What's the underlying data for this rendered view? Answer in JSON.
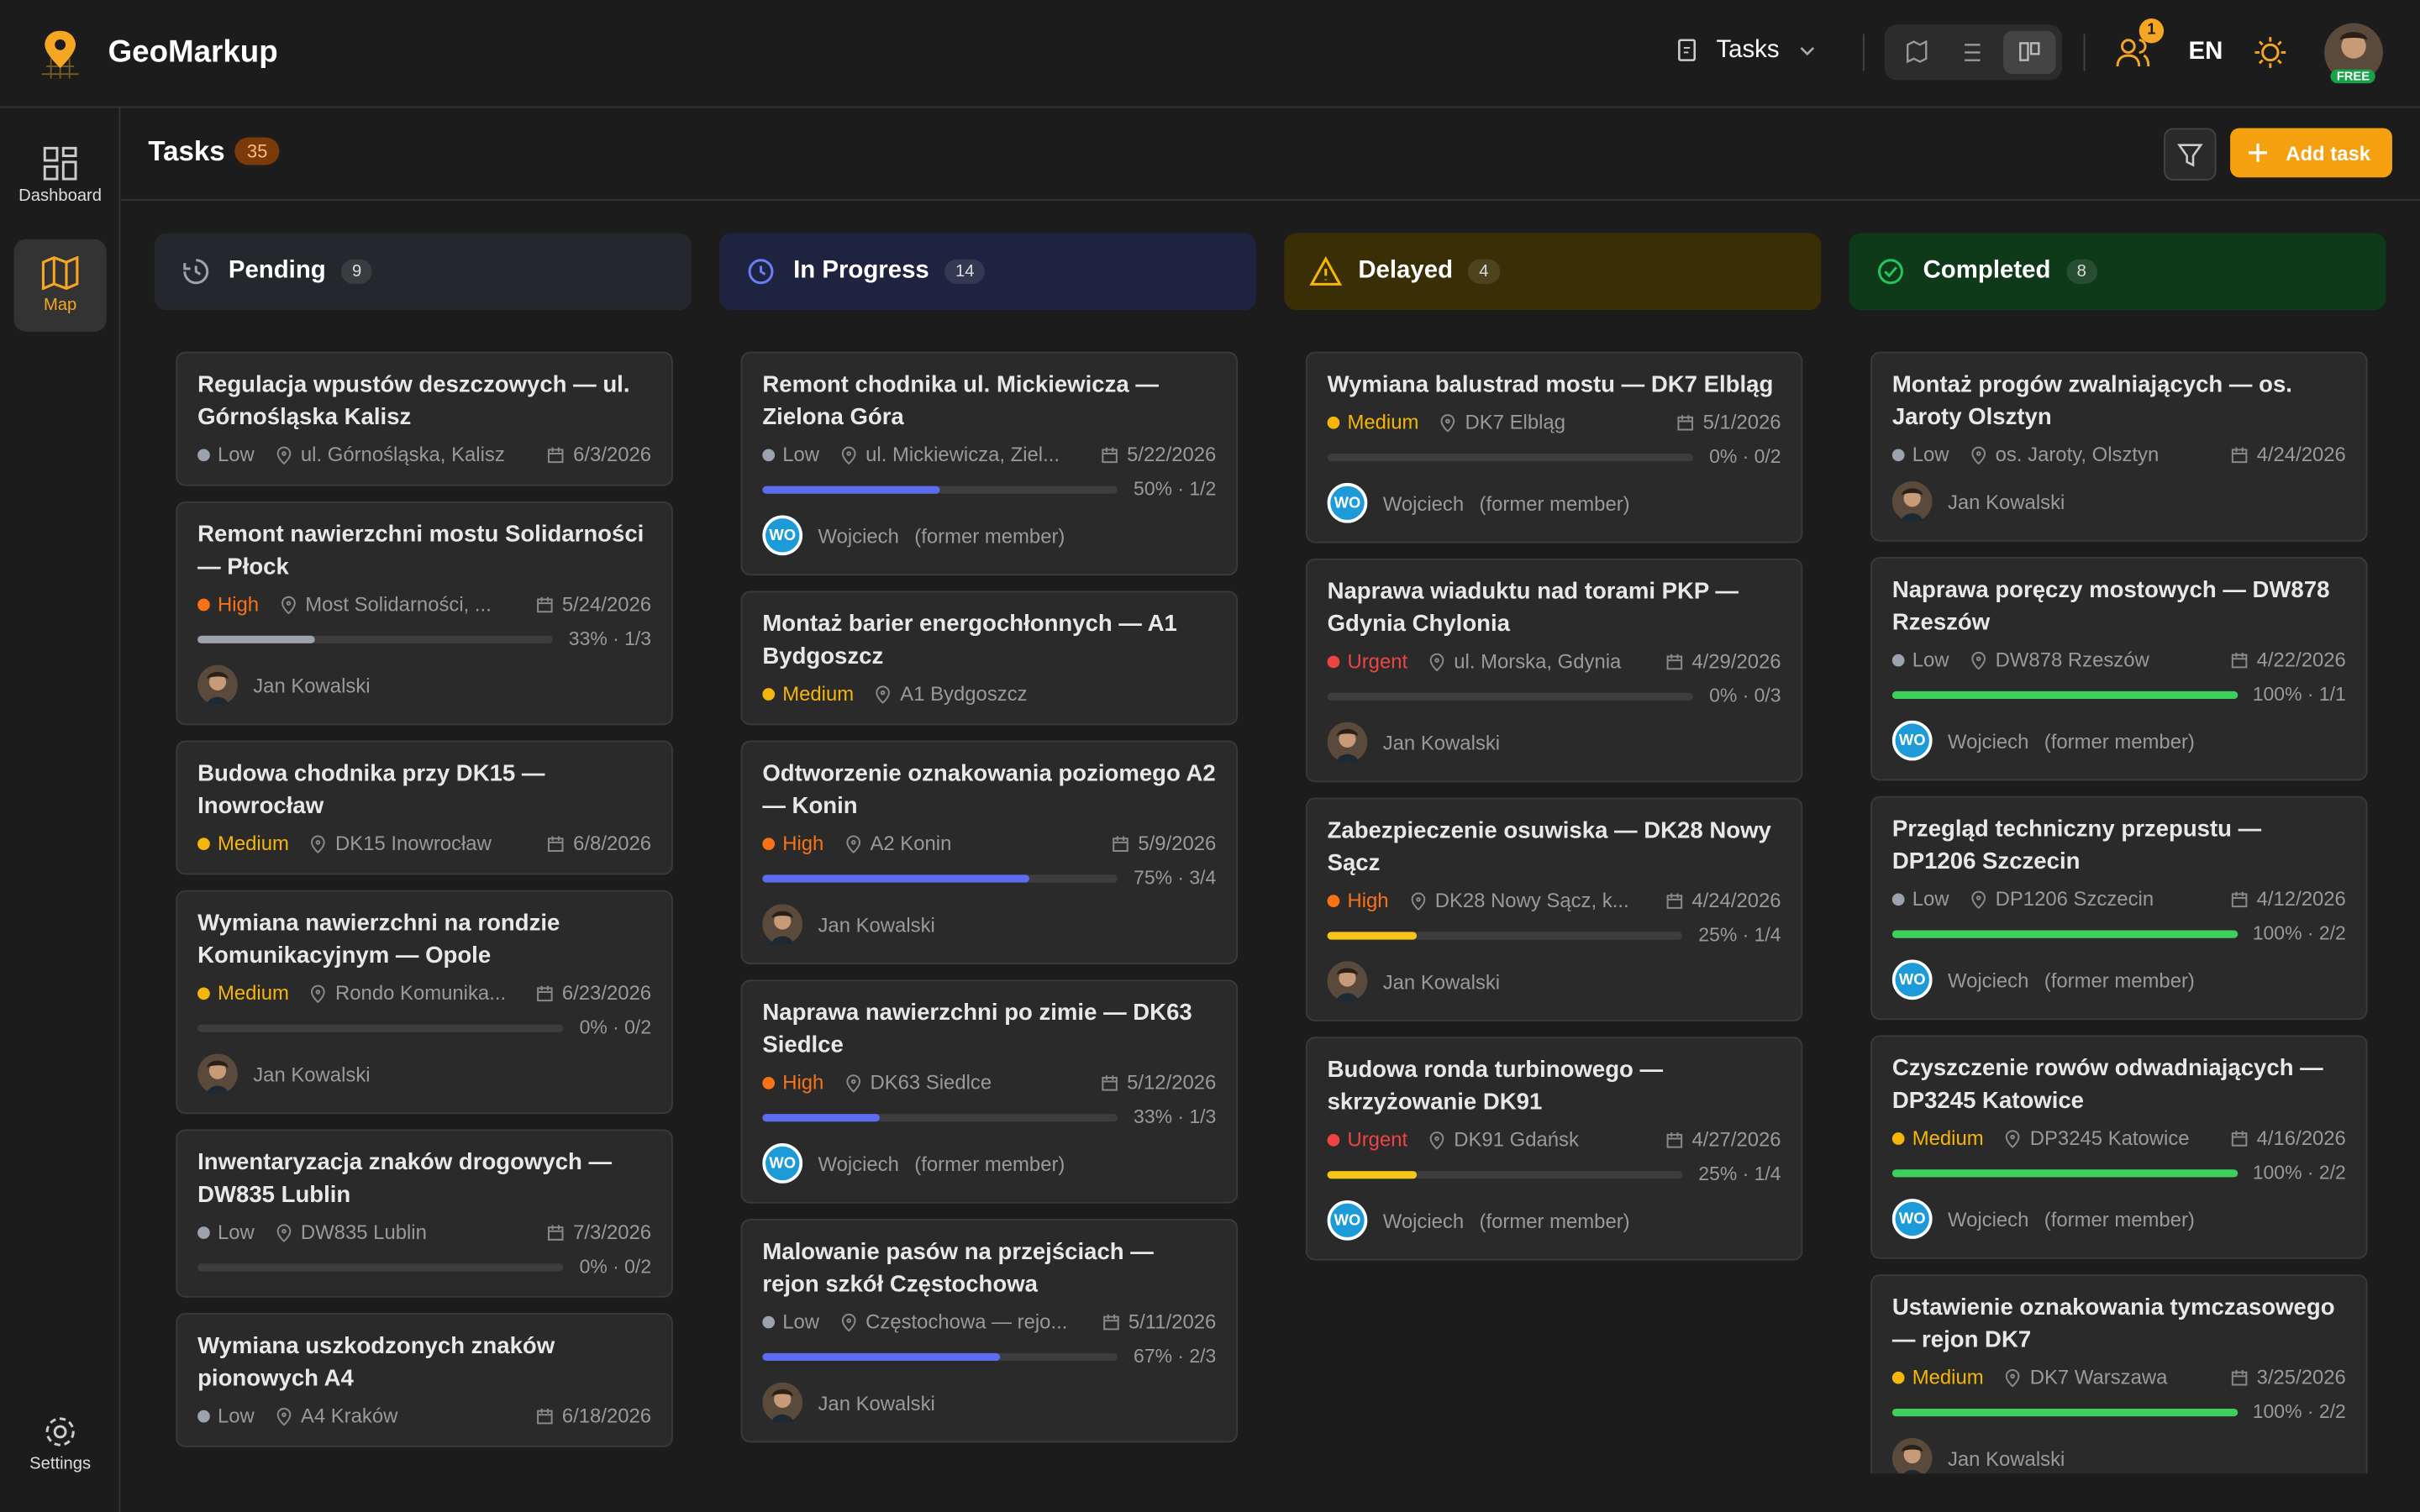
{
  "header": {
    "brand": "GeoMarkup",
    "view": "Tasks",
    "notifications": "1",
    "language": "EN",
    "plan": "FREE"
  },
  "sidebar": {
    "items": [
      "Dashboard",
      "Map"
    ],
    "settings": "Settings"
  },
  "toolbar": {
    "title": "Tasks",
    "count": "35",
    "add": "Add task"
  },
  "columns": [
    {
      "name": "Pending",
      "count": "9",
      "bg": "#24272b",
      "accent": "#9ca3af",
      "bar": "#9ca3af",
      "cards": [
        {
          "title": "Regulacja wpustów deszczowych — ul. Górnośląska Kalisz",
          "priority": {
            "label": "Low",
            "color": "#9ca3af"
          },
          "location": "ul. Górnośląska, Kalisz",
          "date": "6/3/2026"
        },
        {
          "title": "Remont nawierzchni mostu Solidarności — Płock",
          "priority": {
            "label": "High",
            "color": "#f97316"
          },
          "location": "Most Solidarności, ...",
          "date": "5/24/2026",
          "progress": {
            "value": 33,
            "label": "33% · 1/3"
          },
          "assignee": {
            "name": "Jan Kowalski"
          }
        },
        {
          "title": "Budowa chodnika przy DK15 — Inowrocław",
          "priority": {
            "label": "Medium",
            "color": "#f5b50a"
          },
          "location": "DK15 Inowrocław",
          "date": "6/8/2026"
        },
        {
          "title": "Wymiana nawierzchni na rondzie Komunikacyjnym — Opole",
          "priority": {
            "label": "Medium",
            "color": "#f5b50a"
          },
          "location": "Rondo Komunika...",
          "date": "6/23/2026",
          "progress": {
            "value": 0,
            "label": "0% · 0/2"
          },
          "assignee": {
            "name": "Jan Kowalski"
          }
        },
        {
          "title": "Inwentaryzacja znaków drogowych — DW835 Lublin",
          "priority": {
            "label": "Low",
            "color": "#9ca3af"
          },
          "location": "DW835 Lublin",
          "date": "7/3/2026",
          "progress": {
            "value": 0,
            "label": "0% · 0/2"
          }
        },
        {
          "title": "Wymiana uszkodzonych znaków pionowych A4",
          "priority": {
            "label": "Low",
            "color": "#9ca3af"
          },
          "location": "A4 Kraków",
          "date": "6/18/2026"
        }
      ]
    },
    {
      "name": "In Progress",
      "count": "14",
      "bg": "#1e2340",
      "accent": "#6b7cf6",
      "bar": "#5b6cf0",
      "cards": [
        {
          "title": "Remont chodnika ul. Mickiewicza — Zielona Góra",
          "priority": {
            "label": "Low",
            "color": "#9ca3af"
          },
          "location": "ul. Mickiewicza, Ziel...",
          "date": "5/22/2026",
          "progress": {
            "value": 50,
            "label": "50% · 1/2"
          },
          "assignee": {
            "initials": "WO",
            "name": "Wojciech",
            "note": "(former member)"
          }
        },
        {
          "title": "Montaż barier energochłonnych — A1 Bydgoszcz",
          "priority": {
            "label": "Medium",
            "color": "#f5b50a"
          },
          "location": "A1 Bydgoszcz"
        },
        {
          "title": "Odtworzenie oznakowania poziomego A2 — Konin",
          "priority": {
            "label": "High",
            "color": "#f97316"
          },
          "location": "A2 Konin",
          "date": "5/9/2026",
          "progress": {
            "value": 75,
            "label": "75% · 3/4"
          },
          "assignee": {
            "name": "Jan Kowalski"
          }
        },
        {
          "title": "Naprawa nawierzchni po zimie — DK63 Siedlce",
          "priority": {
            "label": "High",
            "color": "#f97316"
          },
          "location": "DK63 Siedlce",
          "date": "5/12/2026",
          "progress": {
            "value": 33,
            "label": "33% · 1/3"
          },
          "assignee": {
            "initials": "WO",
            "name": "Wojciech",
            "note": "(former member)"
          }
        },
        {
          "title": "Malowanie pasów na przejściach — rejon szkół Częstochowa",
          "priority": {
            "label": "Low",
            "color": "#9ca3af"
          },
          "location": "Częstochowa — rejo...",
          "date": "5/11/2026",
          "progress": {
            "value": 67,
            "label": "67% · 2/3"
          },
          "assignee": {
            "name": "Jan Kowalski"
          }
        }
      ]
    },
    {
      "name": "Delayed",
      "count": "4",
      "bg": "#3a2e06",
      "accent": "#f5b50a",
      "bar": "#f5c518",
      "cards": [
        {
          "title": "Wymiana balustrad mostu — DK7 Elbląg",
          "priority": {
            "label": "Medium",
            "color": "#f5b50a"
          },
          "location": "DK7 Elbląg",
          "date": "5/1/2026",
          "progress": {
            "value": 0,
            "label": "0% · 0/2"
          },
          "assignee": {
            "initials": "WO",
            "name": "Wojciech",
            "note": "(former member)"
          }
        },
        {
          "title": "Naprawa wiaduktu nad torami PKP — Gdynia Chylonia",
          "priority": {
            "label": "Urgent",
            "color": "#ef4444"
          },
          "location": "ul. Morska, Gdynia",
          "date": "4/29/2026",
          "progress": {
            "value": 0,
            "label": "0% · 0/3"
          },
          "assignee": {
            "name": "Jan Kowalski"
          }
        },
        {
          "title": "Zabezpieczenie osuwiska — DK28 Nowy Sącz",
          "priority": {
            "label": "High",
            "color": "#f97316"
          },
          "location": "DK28 Nowy Sącz, k...",
          "date": "4/24/2026",
          "progress": {
            "value": 25,
            "label": "25% · 1/4"
          },
          "assignee": {
            "name": "Jan Kowalski"
          }
        },
        {
          "title": "Budowa ronda turbinowego — skrzyżowanie DK91",
          "priority": {
            "label": "Urgent",
            "color": "#ef4444"
          },
          "location": "DK91 Gdańsk",
          "date": "4/27/2026",
          "progress": {
            "value": 25,
            "label": "25% · 1/4"
          },
          "assignee": {
            "initials": "WO",
            "name": "Wojciech",
            "note": "(former member)"
          }
        }
      ]
    },
    {
      "name": "Completed",
      "count": "8",
      "bg": "#0f3a1a",
      "accent": "#22c55e",
      "bar": "#3ecf5c",
      "cards": [
        {
          "title": "Montaż progów zwalniających — os. Jaroty Olsztyn",
          "priority": {
            "label": "Low",
            "color": "#9ca3af"
          },
          "location": "os. Jaroty, Olsztyn",
          "date": "4/24/2026",
          "assignee": {
            "name": "Jan Kowalski"
          }
        },
        {
          "title": "Naprawa poręczy mostowych — DW878 Rzeszów",
          "priority": {
            "label": "Low",
            "color": "#9ca3af"
          },
          "location": "DW878 Rzeszów",
          "date": "4/22/2026",
          "progress": {
            "value": 100,
            "label": "100% · 1/1"
          },
          "assignee": {
            "initials": "WO",
            "name": "Wojciech",
            "note": "(former member)"
          }
        },
        {
          "title": "Przegląd techniczny przepustu — DP1206 Szczecin",
          "priority": {
            "label": "Low",
            "color": "#9ca3af"
          },
          "location": "DP1206 Szczecin",
          "date": "4/12/2026",
          "progress": {
            "value": 100,
            "label": "100% · 2/2"
          },
          "assignee": {
            "initials": "WO",
            "name": "Wojciech",
            "note": "(former member)"
          }
        },
        {
          "title": "Czyszczenie rowów odwadniających — DP3245 Katowice",
          "priority": {
            "label": "Medium",
            "color": "#f5b50a"
          },
          "location": "DP3245 Katowice",
          "date": "4/16/2026",
          "progress": {
            "value": 100,
            "label": "100% · 2/2"
          },
          "assignee": {
            "initials": "WO",
            "name": "Wojciech",
            "note": "(former member)"
          }
        },
        {
          "title": "Ustawienie oznakowania tymczasowego — rejon DK7",
          "priority": {
            "label": "Medium",
            "color": "#f5b50a"
          },
          "location": "DK7 Warszawa",
          "date": "3/25/2026",
          "progress": {
            "value": 100,
            "label": "100% · 2/2"
          },
          "assignee": {
            "name": "Jan Kowalski"
          }
        }
      ]
    }
  ]
}
